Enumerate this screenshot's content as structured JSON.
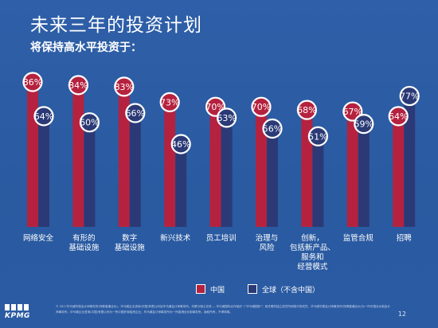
{
  "title": "未来三年的投资计划",
  "subtitle": "将保持高水平投资于：",
  "legend": {
    "china": "中国",
    "global": "全球（不含中国）"
  },
  "colors": {
    "china": "#b5223f",
    "global": "#2b3a76",
    "background": "#2d5ea6",
    "bubble_fill": "#ffffff"
  },
  "chart_data": {
    "type": "bar",
    "categories": [
      [
        "网络安全"
      ],
      [
        "有形的",
        "基础设施"
      ],
      [
        "数字",
        "基础设施"
      ],
      [
        "新兴技术"
      ],
      [
        "员工培训"
      ],
      [
        "治理与",
        "风险"
      ],
      [
        "创新，",
        "包括新产品、",
        "服务和",
        "经营模式"
      ],
      [
        "监管合规"
      ],
      [
        "招聘"
      ]
    ],
    "series": [
      {
        "name": "中国",
        "values": [
          86,
          84,
          83,
          73,
          70,
          70,
          68,
          67,
          64
        ]
      },
      {
        "name": "全球（不含中国）",
        "values": [
          64,
          60,
          66,
          46,
          63,
          56,
          51,
          59,
          77
        ]
      }
    ],
    "unit": "%",
    "ylim": [
      0,
      100
    ],
    "grid": false,
    "legend_position": "bottom-center"
  },
  "footer": {
    "brand": "KPMG",
    "page_number": "12",
    "disclaimer": "© 2017毕马威华振会计师事务所(特殊普通合伙)、毕马威企业咨询(中国)有限公司及毕马威会计师事务所，均是与瑞士实体 — 毕马威国际合作组织（“毕马威国际”）相关联的独立成员所网络中的成员。毕马威华振会计师事务所(特殊普通合伙)为一所中国合伙制会计师事务所；毕马威企业咨询(中国)有限公司为一所中国外商独资企业；毕马威会计师事务所为一所香港合伙制事务所。版权所有，不得转载。"
  }
}
